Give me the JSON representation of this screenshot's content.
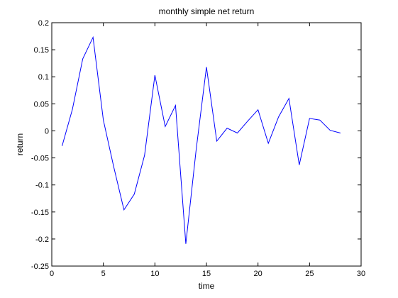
{
  "chart_data": {
    "type": "line",
    "title": "monthly simple net return",
    "xlabel": "time",
    "ylabel": "return",
    "xlim": [
      0,
      30
    ],
    "ylim": [
      -0.25,
      0.2
    ],
    "xticks": [
      0,
      5,
      10,
      15,
      20,
      25,
      30
    ],
    "yticks": [
      -0.25,
      -0.2,
      -0.15,
      -0.1,
      -0.05,
      0,
      0.05,
      0.1,
      0.15,
      0.2
    ],
    "xtick_labels": [
      "0",
      "5",
      "10",
      "15",
      "20",
      "25",
      "30"
    ],
    "ytick_labels": [
      "-0.25",
      "-0.2",
      "-0.15",
      "-0.1",
      "-0.05",
      "0",
      "0.05",
      "0.1",
      "0.15",
      "0.2"
    ],
    "grid": false,
    "line_color": "#0000ff",
    "x": [
      1,
      2,
      3,
      4,
      5,
      6,
      7,
      8,
      9,
      10,
      11,
      12,
      13,
      14,
      15,
      16,
      17,
      18,
      19,
      20,
      21,
      22,
      23,
      24,
      25,
      26,
      27,
      28
    ],
    "y": [
      -0.028,
      0.04,
      0.133,
      0.173,
      0.02,
      -0.066,
      -0.146,
      -0.117,
      -0.045,
      0.103,
      0.008,
      0.047,
      -0.209,
      -0.035,
      0.118,
      -0.019,
      0.005,
      -0.004,
      0.018,
      0.039,
      -0.023,
      0.026,
      0.06,
      -0.063,
      0.023,
      0.02,
      0.001,
      -0.004
    ]
  }
}
